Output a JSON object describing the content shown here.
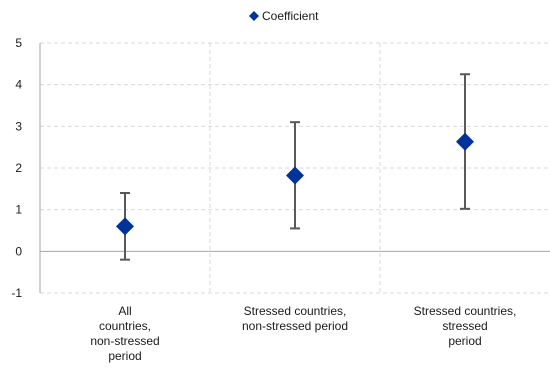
{
  "chart_data": {
    "type": "scatter",
    "categories": [
      [
        "All",
        "countries,",
        "non-stressed",
        "period"
      ],
      [
        "Stressed countries,",
        "non-stressed period"
      ],
      [
        "Stressed countries,",
        "stressed",
        "period"
      ]
    ],
    "series": [
      {
        "name": "Coefficient",
        "values": [
          0.6,
          1.82,
          2.63
        ],
        "lower": [
          -0.2,
          0.55,
          1.02
        ],
        "upper": [
          1.4,
          3.1,
          4.25
        ]
      }
    ],
    "ylim": [
      -1,
      5
    ],
    "yticks": [
      "5",
      "4",
      "3",
      "2",
      "1",
      "0",
      "-1"
    ],
    "legend_position": "top-center",
    "grid": true,
    "colors": {
      "marker": "#003399",
      "errorbar": "#595959",
      "grid": "#d9d9d9",
      "axis": "#a6a6a6"
    }
  }
}
